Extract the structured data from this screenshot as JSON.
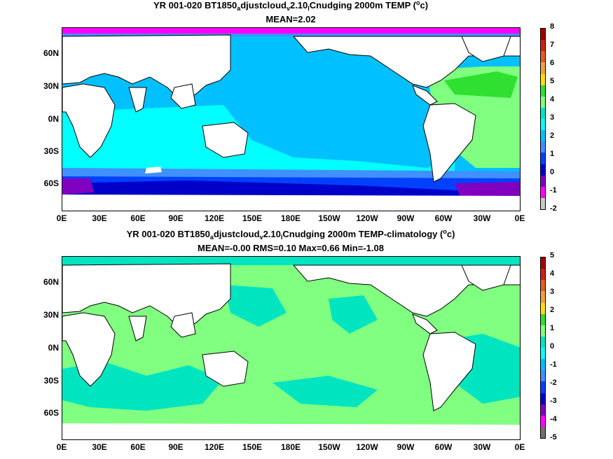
{
  "panels": [
    {
      "title_parts": {
        "a": "YR 001-020 BT1850",
        "b": "a",
        "c": "djustcloud",
        "d": "v",
        "e": "2.10",
        "f": "l",
        "g": "Cnudging 2000m TEMP (",
        "h": "o",
        "i": "c)"
      },
      "stats": "MEAN=2.02",
      "lat_labels": [
        "60N",
        "30N",
        "0N",
        "30S",
        "60S"
      ],
      "lon_labels": [
        "0E",
        "30E",
        "60E",
        "90E",
        "120E",
        "150E",
        "180E",
        "150W",
        "120W",
        "90W",
        "60W",
        "30W",
        "0E"
      ],
      "colorbar_ticks": [
        "8",
        "7",
        "6",
        "5",
        "4",
        "3",
        "2",
        "1",
        "0",
        "-1",
        "-2"
      ],
      "colorbar_colors": [
        "#a00000",
        "#d02010",
        "#e06020",
        "#f0a040",
        "#ffe000",
        "#30e030",
        "#80ff80",
        "#00e5c0",
        "#00ffff",
        "#00c0ff",
        "#4090ff",
        "#0040ff",
        "#0000c8",
        "#8000c0",
        "#ff00ff",
        "#c8c8c8"
      ]
    },
    {
      "title_parts": {
        "a": "YR 001-020 BT1850",
        "b": "a",
        "c": "djustcloud",
        "d": "v",
        "e": "2.10",
        "f": "l",
        "g": "Cnudging 2000m TEMP-climatology (",
        "h": "o",
        "i": "c)"
      },
      "stats": "MEAN=-0.00   RMS=0.10   Max=0.66   Min=-1.08",
      "lat_labels": [
        "60N",
        "30N",
        "0N",
        "30S",
        "60S"
      ],
      "lon_labels": [
        "0E",
        "30E",
        "60E",
        "90E",
        "120E",
        "150E",
        "180E",
        "150W",
        "120W",
        "90W",
        "60W",
        "30W",
        "0E"
      ],
      "colorbar_ticks": [
        "5",
        "4",
        "3",
        "2",
        "1",
        "0",
        "-1",
        "-2",
        "-3",
        "-4",
        "-5"
      ],
      "colorbar_colors": [
        "#a00000",
        "#d02010",
        "#e06020",
        "#f0a040",
        "#ffe000",
        "#30e030",
        "#80ff80",
        "#00e5c0",
        "#00ffff",
        "#00c0ff",
        "#4090ff",
        "#0040ff",
        "#0000c8",
        "#8000c0",
        "#ff00ff",
        "#707070"
      ]
    }
  ]
}
